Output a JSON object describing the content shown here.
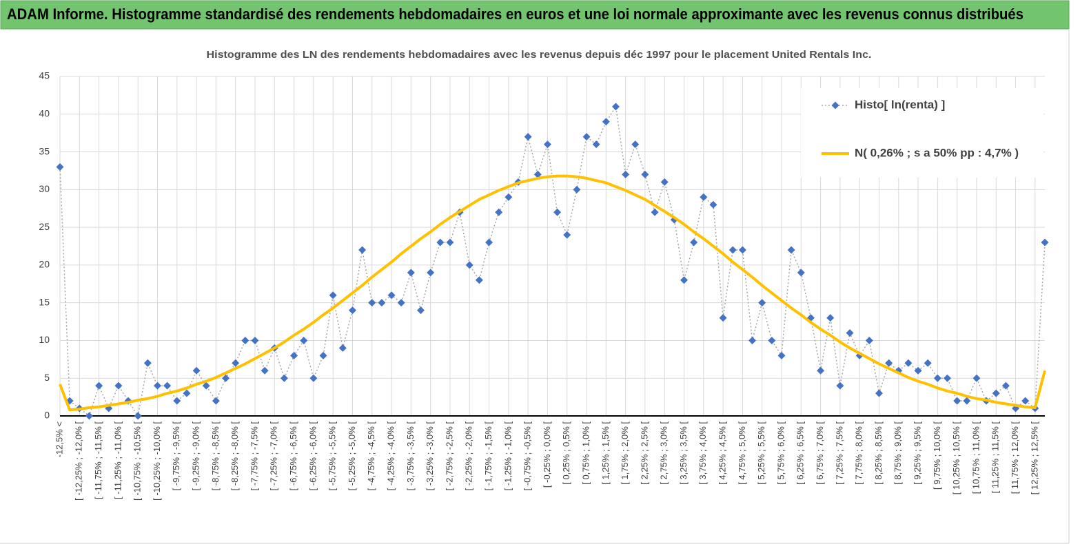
{
  "header": {
    "title": "ADAM Informe. Histogramme standardisé des rendements hebdomadaires en euros et une loi normale approximante avec les revenus connus distribués"
  },
  "chart_data": {
    "type": "line",
    "title": "Histogramme des LN des rendements hebdomadaires avec les revenus depuis déc 1997 pour le placement United Rentals Inc.",
    "categories": [
      "-12,5% <",
      null,
      "[ -12,25% ; -12,0% [",
      null,
      "[ -11,75% ; -11,5% [",
      null,
      "[ -11,25% ; -11,0% [",
      null,
      "[ -10,75% ; -10,5% [",
      null,
      "[ -10,25% ; -10,0% [",
      null,
      "[ -9,75% ; -9,5% [",
      null,
      "[ -9,25% ; -9,0% [",
      null,
      "[ -8,75% ; -8,5% [",
      null,
      "[ -8,25% ; -8,0% [",
      null,
      "[ -7,75% ; -7,5% [",
      null,
      "[ -7,25% ; -7,0% [",
      null,
      "[ -6,75% ; -6,5% [",
      null,
      "[ -6,25% ; -6,0% [",
      null,
      "[ -5,75% ; -5,5% [",
      null,
      "[ -5,25% ; -5,0% [",
      null,
      "[ -4,75% ; -4,5% [",
      null,
      "[ -4,25% ; -4,0% [",
      null,
      "[ -3,75% ; -3,5% [",
      null,
      "[ -3,25% ; -3,0% [",
      null,
      "[ -2,75% ; -2,5% [",
      null,
      "[ -2,25% ; -2,0% [",
      null,
      "[ -1,75% ; -1,5% [",
      null,
      "[ -1,25% ; -1,0% [",
      null,
      "[ -0,75% ; -0,5% [",
      null,
      "[ -0,25% ; 0,0% [",
      null,
      "[ 0,25% ; 0,5% [",
      null,
      "[ 0,75% ; 1,0% [",
      null,
      "[ 1,25% ; 1,5% [",
      null,
      "[ 1,75% ; 2,0% [",
      null,
      "[ 2,25% ; 2,5% [",
      null,
      "[ 2,75% ; 3,0% [",
      null,
      "[ 3,25% ; 3,5% [",
      null,
      "[ 3,75% ; 4,0% [",
      null,
      "[ 4,25% ; 4,5% [",
      null,
      "[ 4,75% ; 5,0% [",
      null,
      "[ 5,25% ; 5,5% [",
      null,
      "[ 5,75% ; 6,0% [",
      null,
      "[ 6,25% ; 6,5% [",
      null,
      "[ 6,75% ; 7,0% [",
      null,
      "[ 7,25% ; 7,5% [",
      null,
      "[ 7,75% ; 8,0% [",
      null,
      "[ 8,25% ; 8,5% [",
      null,
      "[ 8,75% ; 9,0% [",
      null,
      "[ 9,25% ; 9,5% [",
      null,
      "[ 9,75% ; 10,0% [",
      null,
      "[ 10,25% ; 10,5% [",
      null,
      "[ 10,75% ; 11,0% [",
      null,
      "[ 11,25% ; 11,5% [",
      null,
      "[ 11,75% ; 12,0% [",
      null,
      "[ 12,25% ; 12,5% [",
      null
    ],
    "series": [
      {
        "name": "Histo[ ln(renta) ]",
        "color": "#4472c4",
        "line_color": "#a6a6a6",
        "line_style": "dotted",
        "marker": "diamond",
        "values": [
          33,
          2,
          1,
          0,
          4,
          1,
          4,
          2,
          0,
          7,
          4,
          4,
          2,
          3,
          6,
          4,
          2,
          5,
          7,
          10,
          10,
          6,
          9,
          5,
          8,
          10,
          5,
          8,
          16,
          9,
          14,
          22,
          15,
          15,
          16,
          15,
          19,
          14,
          19,
          23,
          23,
          27,
          20,
          18,
          23,
          27,
          29,
          31,
          37,
          32,
          36,
          27,
          24,
          30,
          37,
          36,
          39,
          41,
          32,
          36,
          32,
          27,
          31,
          26,
          18,
          23,
          29,
          28,
          13,
          22,
          22,
          10,
          15,
          10,
          8,
          22,
          19,
          13,
          6,
          13,
          4,
          11,
          8,
          10,
          3,
          7,
          6,
          7,
          6,
          7,
          5,
          5,
          2,
          2,
          5,
          2,
          3,
          4,
          1,
          2,
          1,
          23
        ]
      },
      {
        "name": "N( 0,26% ; s a 50% pp : 4,7% )",
        "color": "#ffc000",
        "line_style": "solid",
        "marker": "none",
        "values": [
          4.2,
          0.8,
          0.9,
          1.1,
          1.2,
          1.4,
          1.6,
          1.8,
          2.1,
          2.3,
          2.6,
          3.0,
          3.3,
          3.7,
          4.2,
          4.6,
          5.1,
          5.7,
          6.3,
          6.9,
          7.6,
          8.3,
          9.0,
          9.8,
          10.7,
          11.5,
          12.4,
          13.4,
          14.3,
          15.3,
          16.3,
          17.3,
          18.4,
          19.4,
          20.4,
          21.5,
          22.5,
          23.5,
          24.4,
          25.4,
          26.3,
          27.1,
          27.9,
          28.7,
          29.3,
          29.9,
          30.4,
          30.9,
          31.2,
          31.5,
          31.7,
          31.8,
          31.8,
          31.7,
          31.5,
          31.2,
          30.9,
          30.4,
          29.9,
          29.3,
          28.7,
          27.9,
          27.1,
          26.3,
          25.4,
          24.4,
          23.5,
          22.5,
          21.5,
          20.4,
          19.4,
          18.4,
          17.3,
          16.3,
          15.3,
          14.3,
          13.4,
          12.4,
          11.5,
          10.7,
          9.8,
          9.0,
          8.3,
          7.6,
          6.9,
          6.3,
          5.7,
          5.1,
          4.6,
          4.2,
          3.7,
          3.3,
          3.0,
          2.6,
          2.3,
          2.1,
          1.8,
          1.6,
          1.4,
          1.2,
          1.1,
          6.0
        ]
      }
    ],
    "ylim": [
      0,
      45
    ],
    "yticks": [
      0,
      5,
      10,
      15,
      20,
      25,
      30,
      35,
      40,
      45
    ],
    "grid": true,
    "legend": "upper right"
  }
}
